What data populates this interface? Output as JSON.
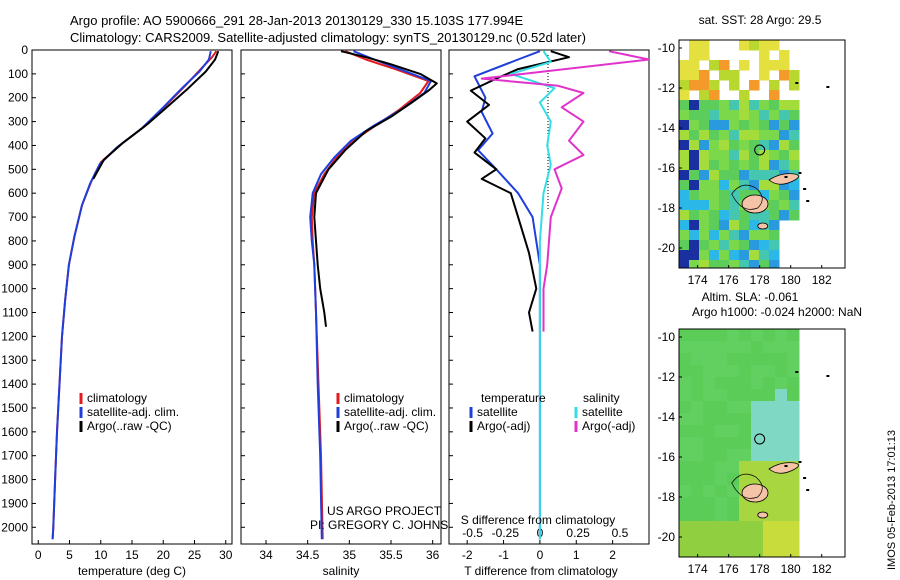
{
  "header": {
    "line1": "Argo profile: AO 5900666_291 28-Jan-2013 20130129_330 15.103S 177.994E",
    "line2": "Climatology: CARS2009. Satellite-adjusted climatology: synTS_20130129.nc (0.52d later)"
  },
  "side_label": "IMOS 05-Feb-2013 17:01:13",
  "colors": {
    "clim": "#e41a1c",
    "sat": "#1f3fdc",
    "argo": "#000000",
    "sat_sal": "#33dde6",
    "argo_sal": "#e033cc"
  },
  "chart_data": [
    {
      "type": "line",
      "id": "temperature",
      "xlabel": "temperature (deg C)",
      "ylabel": "",
      "xlim": [
        -1,
        31
      ],
      "ylim": [
        2070,
        0
      ],
      "xticks": [
        0,
        5,
        10,
        15,
        20,
        25,
        30
      ],
      "yticks": [
        0,
        100,
        200,
        300,
        400,
        500,
        600,
        700,
        800,
        900,
        1000,
        1100,
        1200,
        1300,
        1400,
        1500,
        1600,
        1700,
        1800,
        1900,
        2000
      ],
      "legend": [
        "climatology",
        "satellite-adj. clim.",
        "Argo(..raw -QC)"
      ],
      "series": [
        {
          "name": "climatology",
          "color": "clim",
          "points": [
            [
              28.5,
              5
            ],
            [
              27.8,
              30
            ],
            [
              26,
              80
            ],
            [
              23.5,
              150
            ],
            [
              20.5,
              230
            ],
            [
              17,
              320
            ],
            [
              13,
              400
            ],
            [
              10,
              470
            ],
            [
              8.5,
              550
            ],
            [
              7,
              650
            ],
            [
              5.8,
              780
            ],
            [
              4.9,
              900
            ],
            [
              4.3,
              1050
            ],
            [
              3.8,
              1200
            ],
            [
              3.4,
              1400
            ],
            [
              3.0,
              1600
            ],
            [
              2.7,
              1800
            ],
            [
              2.4,
              2000
            ],
            [
              2.3,
              2050
            ]
          ]
        },
        {
          "name": "satellite-adj. clim.",
          "color": "sat",
          "points": [
            [
              27.6,
              5
            ],
            [
              27.3,
              40
            ],
            [
              25.8,
              90
            ],
            [
              23,
              160
            ],
            [
              20,
              240
            ],
            [
              16.5,
              330
            ],
            [
              12.5,
              410
            ],
            [
              9.8,
              480
            ],
            [
              8.3,
              560
            ],
            [
              7,
              650
            ],
            [
              5.8,
              780
            ],
            [
              4.9,
              900
            ],
            [
              4.3,
              1050
            ],
            [
              3.8,
              1200
            ],
            [
              3.4,
              1400
            ],
            [
              3.0,
              1600
            ],
            [
              2.7,
              1800
            ],
            [
              2.4,
              2000
            ],
            [
              2.3,
              2050
            ]
          ]
        },
        {
          "name": "Argo(..raw -QC)",
          "color": "argo",
          "points": [
            [
              28.8,
              5
            ],
            [
              28.3,
              40
            ],
            [
              26.8,
              90
            ],
            [
              24,
              160
            ],
            [
              21,
              230
            ],
            [
              17.5,
              310
            ],
            [
              13.5,
              390
            ],
            [
              10.5,
              460
            ],
            [
              8.8,
              540
            ]
          ]
        }
      ]
    },
    {
      "type": "line",
      "id": "salinity",
      "xlabel": "salinity",
      "ylabel": "",
      "xlim": [
        33.7,
        36.1
      ],
      "ylim": [
        2070,
        0
      ],
      "xticks": [
        34,
        34.5,
        35,
        35.5,
        36
      ],
      "legend": [
        "climatology",
        "satellite-adj. clim.",
        "Argo(..raw -QC)"
      ],
      "annotation": [
        "US ARGO PROJECT",
        "PI: GREGORY C. JOHNSON"
      ],
      "series": [
        {
          "name": "climatology",
          "color": "clim",
          "points": [
            [
              34.95,
              5
            ],
            [
              35.2,
              40
            ],
            [
              35.55,
              80
            ],
            [
              35.95,
              130
            ],
            [
              35.85,
              180
            ],
            [
              35.6,
              250
            ],
            [
              35.3,
              320
            ],
            [
              35.05,
              380
            ],
            [
              34.85,
              450
            ],
            [
              34.7,
              520
            ],
            [
              34.58,
              600
            ],
            [
              34.55,
              700
            ],
            [
              34.56,
              800
            ],
            [
              34.58,
              900
            ],
            [
              34.6,
              1100
            ],
            [
              34.63,
              1400
            ],
            [
              34.66,
              1700
            ],
            [
              34.68,
              2050
            ]
          ]
        },
        {
          "name": "satellite-adj. clim.",
          "color": "sat",
          "points": [
            [
              35.05,
              5
            ],
            [
              35.3,
              40
            ],
            [
              35.6,
              80
            ],
            [
              35.98,
              130
            ],
            [
              35.9,
              180
            ],
            [
              35.62,
              250
            ],
            [
              35.28,
              320
            ],
            [
              35.02,
              380
            ],
            [
              34.82,
              450
            ],
            [
              34.66,
              520
            ],
            [
              34.56,
              600
            ],
            [
              34.53,
              700
            ],
            [
              34.55,
              800
            ],
            [
              34.58,
              900
            ],
            [
              34.6,
              1100
            ],
            [
              34.62,
              1400
            ],
            [
              34.65,
              1700
            ],
            [
              34.67,
              2050
            ]
          ]
        },
        {
          "name": "Argo(..raw -QC)",
          "color": "argo",
          "points": [
            [
              34.9,
              5
            ],
            [
              35.2,
              30
            ],
            [
              35.5,
              60
            ],
            [
              35.85,
              100
            ],
            [
              36.05,
              140
            ],
            [
              35.95,
              170
            ],
            [
              35.75,
              220
            ],
            [
              35.5,
              280
            ],
            [
              35.2,
              340
            ],
            [
              34.95,
              420
            ],
            [
              34.75,
              500
            ],
            [
              34.6,
              600
            ],
            [
              34.58,
              700
            ],
            [
              34.6,
              800
            ],
            [
              34.62,
              900
            ],
            [
              34.65,
              1000
            ],
            [
              34.7,
              1100
            ],
            [
              34.72,
              1160
            ]
          ]
        }
      ]
    },
    {
      "type": "line",
      "id": "difference",
      "xlabel": "T difference from climatology",
      "xlabel2": "S difference from climatology",
      "xlim": [
        -2.5,
        3.0
      ],
      "ylim": [
        2070,
        0
      ],
      "xticks": [
        -2,
        -1,
        0,
        1,
        2
      ],
      "xticks_s": [
        "-0.5",
        "-0.25",
        "0",
        "0.25",
        "0.5"
      ],
      "legend_t_title": "temperature",
      "legend_s_title": "salinity",
      "legend": [
        "satellite",
        "Argo(-adj)",
        "satellite",
        "Argo(-adj)"
      ],
      "series": [
        {
          "name": "T satellite",
          "color": "sat",
          "points": [
            [
              0,
              5
            ],
            [
              -0.6,
              40
            ],
            [
              -1.8,
              110
            ],
            [
              -1.5,
              200
            ],
            [
              -1.6,
              260
            ],
            [
              -1.3,
              350
            ],
            [
              -1.7,
              420
            ],
            [
              -1.2,
              500
            ],
            [
              -0.6,
              600
            ],
            [
              -0.2,
              700
            ],
            [
              0,
              900
            ],
            [
              0,
              2050
            ]
          ]
        },
        {
          "name": "T Argo(-adj)",
          "color": "argo",
          "points": [
            [
              0.3,
              5
            ],
            [
              0.8,
              30
            ],
            [
              -0.6,
              80
            ],
            [
              -1.2,
              120
            ],
            [
              -1.9,
              170
            ],
            [
              -1.4,
              230
            ],
            [
              -2.0,
              300
            ],
            [
              -1.5,
              370
            ],
            [
              -1.8,
              430
            ],
            [
              -1.2,
              500
            ],
            [
              -1.6,
              540
            ],
            [
              -0.8,
              600
            ],
            [
              -0.6,
              700
            ],
            [
              -0.3,
              850
            ],
            [
              -0.1,
              1000
            ],
            [
              -0.3,
              1100
            ],
            [
              -0.2,
              1180
            ]
          ]
        },
        {
          "name": "S satellite",
          "color": "sat_sal",
          "points": [
            [
              0.1,
              5
            ],
            [
              0.3,
              50
            ],
            [
              -0.8,
              100
            ],
            [
              0.4,
              160
            ],
            [
              0,
              220
            ],
            [
              0.3,
              300
            ],
            [
              0.2,
              400
            ],
            [
              0.3,
              480
            ],
            [
              0.1,
              600
            ],
            [
              0,
              800
            ],
            [
              0,
              2050
            ]
          ]
        },
        {
          "name": "S Argo(-adj)",
          "color": "argo_sal",
          "points": [
            [
              1.9,
              5
            ],
            [
              3.0,
              40
            ],
            [
              -1.6,
              120
            ],
            [
              0.5,
              150
            ],
            [
              1.2,
              180
            ],
            [
              0.6,
              240
            ],
            [
              1.2,
              300
            ],
            [
              0.8,
              380
            ],
            [
              1.2,
              440
            ],
            [
              0.4,
              500
            ],
            [
              0.6,
              580
            ],
            [
              0.3,
              700
            ],
            [
              0.2,
              900
            ],
            [
              0.1,
              1000
            ],
            [
              0.1,
              1180
            ]
          ]
        }
      ]
    },
    {
      "type": "heatmap",
      "id": "sst-map",
      "title": "sat. SST: 28 Argo: 29.5",
      "xlim": [
        172.8,
        183.5
      ],
      "ylim": [
        -21,
        -9.6
      ],
      "xticks": [
        174,
        176,
        178,
        180,
        182
      ],
      "yticks": [
        -10,
        -12,
        -14,
        -16,
        -18,
        -20
      ],
      "marker": [
        178,
        -15.1
      ]
    },
    {
      "type": "heatmap",
      "id": "sla-map",
      "title": "Altim. SLA: -0.061",
      "subtitle": "Argo h1000: -0.024 h2000: NaN",
      "xlim": [
        172.8,
        183.5
      ],
      "ylim": [
        -21,
        -9.6
      ],
      "xticks": [
        174,
        176,
        178,
        180,
        182
      ],
      "yticks": [
        -10,
        -12,
        -14,
        -16,
        -18,
        -20
      ],
      "marker": [
        178,
        -15.1
      ]
    }
  ]
}
